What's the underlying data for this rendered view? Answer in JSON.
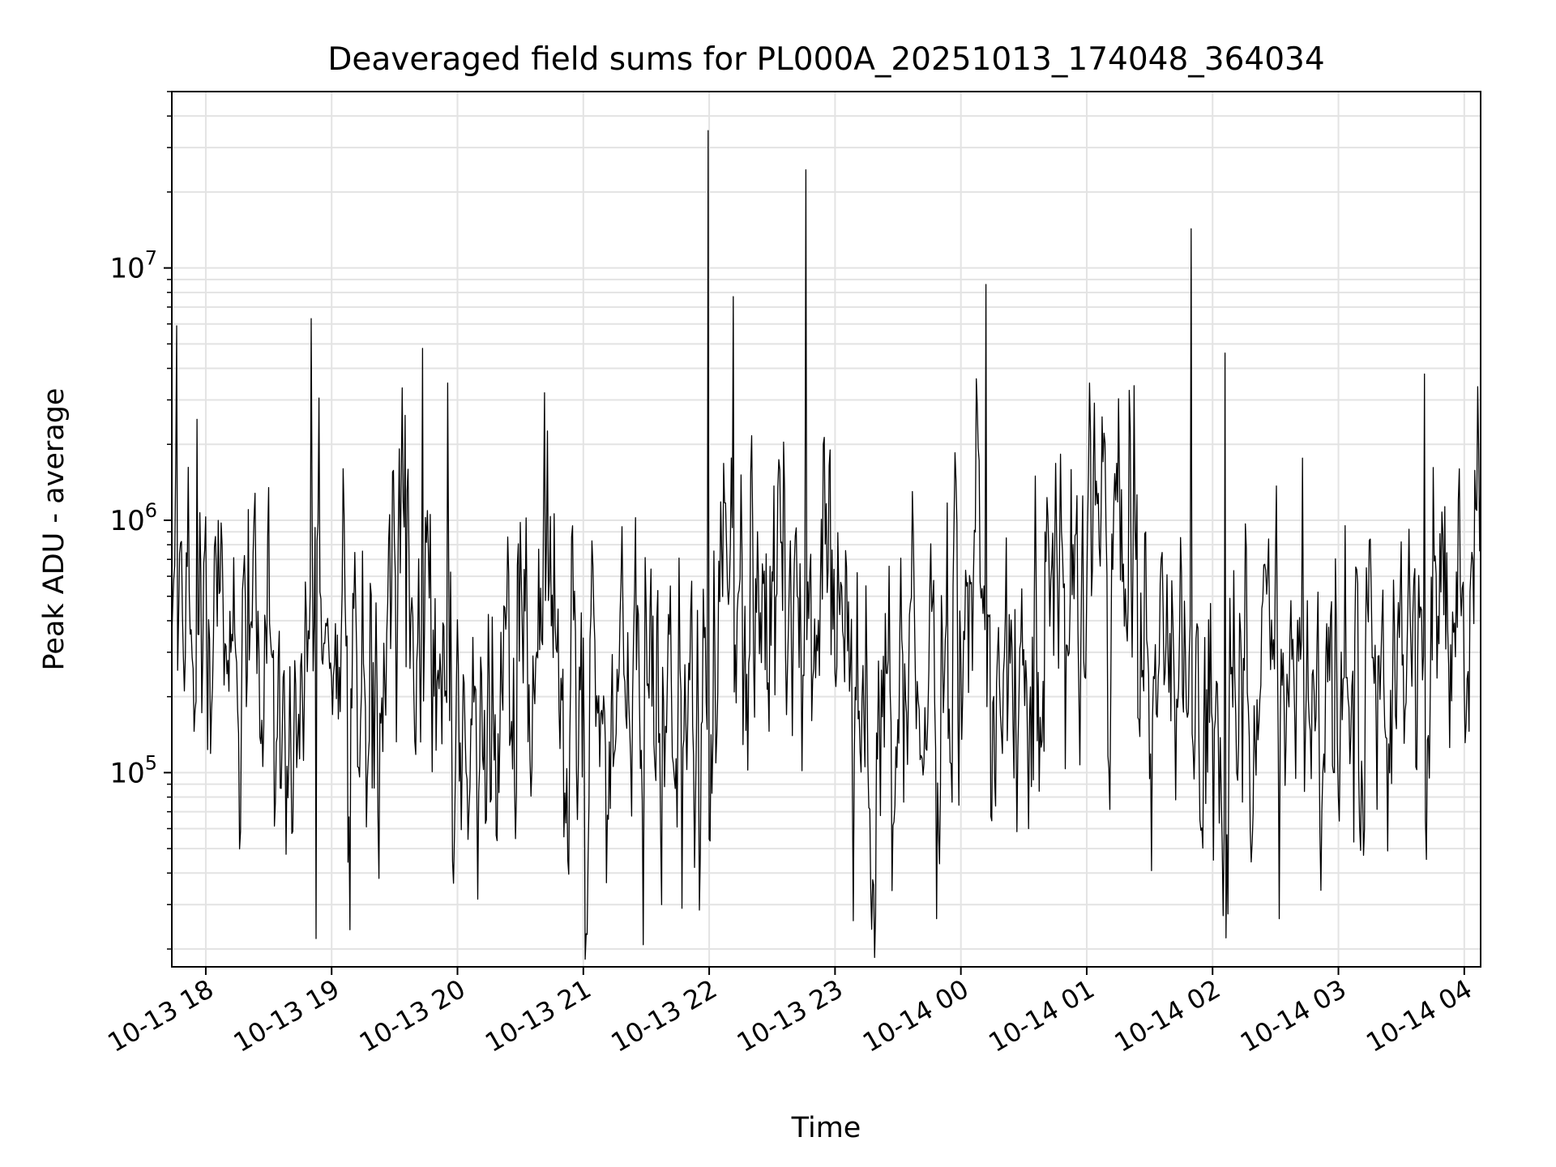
{
  "chart_data": {
    "type": "line",
    "title": "Deaveraged field sums for PL000A_20251013_174048_364034",
    "xlabel": "Time",
    "ylabel": "Peak ADU - average",
    "yscale": "log",
    "ylim": [
      17000,
      50000000
    ],
    "xlim_hours": [
      17.73,
      28.13
    ],
    "grid": true,
    "x_ticks": [
      {
        "hours": 18,
        "label": "10-13 18"
      },
      {
        "hours": 19,
        "label": "10-13 19"
      },
      {
        "hours": 20,
        "label": "10-13 20"
      },
      {
        "hours": 21,
        "label": "10-13 21"
      },
      {
        "hours": 22,
        "label": "10-13 22"
      },
      {
        "hours": 23,
        "label": "10-13 23"
      },
      {
        "hours": 24,
        "label": "10-14 00"
      },
      {
        "hours": 25,
        "label": "10-14 01"
      },
      {
        "hours": 26,
        "label": "10-14 02"
      },
      {
        "hours": 27,
        "label": "10-14 03"
      },
      {
        "hours": 28,
        "label": "10-14 04"
      }
    ],
    "y_ticks": [
      {
        "value": 100000,
        "base": "10",
        "exp": "5"
      },
      {
        "value": 1000000,
        "base": "10",
        "exp": "6"
      },
      {
        "value": 10000000,
        "base": "10",
        "exp": "7"
      }
    ],
    "series": [
      {
        "name": "Deaveraged field sums",
        "color": "#000000",
        "points_per_hour": 130,
        "level_knots_hours": [
          17.73,
          17.9,
          18.15,
          18.4,
          18.7,
          18.95,
          19.2,
          19.5,
          19.75,
          20.0,
          20.4,
          20.7,
          20.85,
          21.1,
          21.4,
          21.6,
          21.85,
          22.1,
          22.4,
          22.7,
          23.0,
          23.3,
          23.6,
          23.8,
          24.1,
          24.3,
          24.6,
          24.9,
          25.2,
          25.5,
          25.75,
          26.0,
          26.3,
          26.6,
          26.9,
          27.2,
          27.5,
          27.8,
          28.13
        ],
        "level_knots_values": [
          600000,
          450000,
          420000,
          300000,
          180000,
          350000,
          160000,
          350000,
          450000,
          120000,
          170000,
          550000,
          140000,
          150000,
          280000,
          280000,
          120000,
          280000,
          450000,
          420000,
          600000,
          110000,
          350000,
          250000,
          900000,
          150000,
          350000,
          450000,
          700000,
          180000,
          180000,
          170000,
          130000,
          280000,
          250000,
          180000,
          250000,
          420000,
          800000
        ],
        "spikes": [
          {
            "hours": 17.77,
            "value": 5900000
          },
          {
            "hours": 18.84,
            "value": 6300000
          },
          {
            "hours": 18.88,
            "value": 22000
          },
          {
            "hours": 19.72,
            "value": 4800000
          },
          {
            "hours": 19.92,
            "value": 3500000
          },
          {
            "hours": 20.69,
            "value": 3200000
          },
          {
            "hours": 21.62,
            "value": 30000
          },
          {
            "hours": 21.78,
            "value": 29000
          },
          {
            "hours": 21.99,
            "value": 35000000
          },
          {
            "hours": 22.19,
            "value": 7700000
          },
          {
            "hours": 22.77,
            "value": 24500000
          },
          {
            "hours": 23.32,
            "value": 27000
          },
          {
            "hours": 24.2,
            "value": 8600000
          },
          {
            "hours": 25.83,
            "value": 14300000
          },
          {
            "hours": 26.1,
            "value": 4600000
          },
          {
            "hours": 27.68,
            "value": 3800000
          }
        ]
      }
    ]
  }
}
